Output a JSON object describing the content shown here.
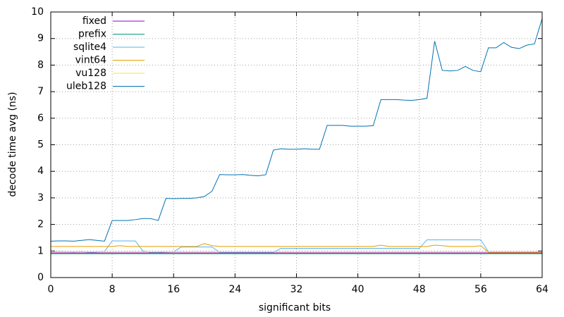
{
  "chart_data": {
    "type": "line",
    "xlabel": "significant bits",
    "ylabel": "decode time avg (ns)",
    "x": [
      0,
      1,
      2,
      3,
      4,
      5,
      6,
      7,
      8,
      9,
      10,
      11,
      12,
      13,
      14,
      15,
      16,
      17,
      18,
      19,
      20,
      21,
      22,
      23,
      24,
      25,
      26,
      27,
      28,
      29,
      30,
      31,
      32,
      33,
      34,
      35,
      36,
      37,
      38,
      39,
      40,
      41,
      42,
      43,
      44,
      45,
      46,
      47,
      48,
      49,
      50,
      51,
      52,
      53,
      54,
      55,
      56,
      57,
      58,
      59,
      60,
      61,
      62,
      63,
      64
    ],
    "xlim": [
      0,
      64
    ],
    "xticks": [
      0,
      8,
      16,
      24,
      32,
      40,
      48,
      56,
      64
    ],
    "ylim": [
      0,
      10
    ],
    "yticks": [
      0,
      1,
      2,
      3,
      4,
      5,
      6,
      7,
      8,
      9,
      10
    ],
    "grid": true,
    "legend": "top-left",
    "series": [
      {
        "name": "fixed",
        "color": "#9400d3",
        "values": [
          0.93,
          0.93,
          0.93,
          0.93,
          0.93,
          0.93,
          0.93,
          0.93,
          0.93,
          0.93,
          0.93,
          0.93,
          0.93,
          0.93,
          0.93,
          0.93,
          0.93,
          0.93,
          0.93,
          0.93,
          0.93,
          0.93,
          0.93,
          0.93,
          0.93,
          0.93,
          0.93,
          0.93,
          0.93,
          0.93,
          0.93,
          0.93,
          0.93,
          0.93,
          0.93,
          0.93,
          0.93,
          0.93,
          0.93,
          0.93,
          0.93,
          0.93,
          0.93,
          0.93,
          0.93,
          0.93,
          0.93,
          0.93,
          0.93,
          0.93,
          0.93,
          0.93,
          0.93,
          0.93,
          0.93,
          0.93,
          0.93,
          0.93,
          0.93,
          0.93,
          0.93,
          0.93,
          0.93,
          0.93,
          0.93
        ]
      },
      {
        "name": "prefix",
        "color": "#009e73",
        "values": [
          0.9,
          0.9,
          0.9,
          0.9,
          0.9,
          0.9,
          0.9,
          0.9,
          0.9,
          0.9,
          0.9,
          0.9,
          0.9,
          0.9,
          0.9,
          0.9,
          0.9,
          0.9,
          0.9,
          0.9,
          0.9,
          0.9,
          0.9,
          0.9,
          0.9,
          0.9,
          0.9,
          0.9,
          0.9,
          0.9,
          0.9,
          0.9,
          0.9,
          0.9,
          0.9,
          0.9,
          0.9,
          0.9,
          0.9,
          0.9,
          0.9,
          0.9,
          0.9,
          0.9,
          0.9,
          0.9,
          0.9,
          0.9,
          0.9,
          0.9,
          0.9,
          0.9,
          0.9,
          0.9,
          0.9,
          0.9,
          0.9,
          0.9,
          0.9,
          0.9,
          0.9,
          0.9,
          0.9,
          0.9,
          0.9
        ]
      },
      {
        "name": "sqlite4",
        "color": "#56b4e9",
        "values": [
          0.98,
          0.98,
          0.97,
          0.96,
          0.98,
          0.95,
          0.96,
          0.98,
          1.38,
          1.38,
          1.38,
          1.38,
          1.0,
          0.95,
          0.95,
          0.96,
          0.97,
          1.15,
          1.15,
          1.15,
          1.15,
          1.15,
          0.95,
          0.95,
          0.95,
          0.95,
          0.95,
          0.95,
          0.95,
          0.95,
          1.1,
          1.1,
          1.1,
          1.1,
          1.1,
          1.1,
          1.1,
          1.1,
          1.1,
          1.1,
          1.1,
          1.1,
          1.1,
          1.1,
          1.1,
          1.1,
          1.1,
          1.1,
          1.1,
          1.42,
          1.42,
          1.42,
          1.42,
          1.42,
          1.42,
          1.42,
          1.42,
          0.97,
          0.97,
          0.97,
          0.97,
          0.97,
          0.97,
          0.97,
          0.97
        ]
      },
      {
        "name": "vint64",
        "color": "#e69f00",
        "values": [
          1.17,
          1.17,
          1.17,
          1.17,
          1.17,
          1.17,
          1.17,
          1.17,
          1.17,
          1.2,
          1.17,
          1.17,
          1.17,
          1.17,
          1.17,
          1.17,
          1.17,
          1.17,
          1.17,
          1.17,
          1.28,
          1.2,
          1.17,
          1.17,
          1.17,
          1.17,
          1.17,
          1.17,
          1.17,
          1.17,
          1.17,
          1.17,
          1.17,
          1.17,
          1.17,
          1.17,
          1.17,
          1.17,
          1.17,
          1.17,
          1.17,
          1.17,
          1.17,
          1.22,
          1.17,
          1.17,
          1.17,
          1.17,
          1.17,
          1.17,
          1.22,
          1.2,
          1.17,
          1.17,
          1.17,
          1.17,
          1.2,
          0.95,
          0.95,
          0.95,
          0.95,
          0.95,
          0.95,
          0.95,
          0.95
        ]
      },
      {
        "name": "vu128",
        "color": "#f0e442",
        "values": [
          0.97,
          0.97,
          0.97,
          0.97,
          0.97,
          0.97,
          0.97,
          0.97,
          0.97,
          0.97,
          0.97,
          0.97,
          0.97,
          0.97,
          0.97,
          0.97,
          0.97,
          0.97,
          0.97,
          0.97,
          0.97,
          0.97,
          0.97,
          0.97,
          0.97,
          0.97,
          0.97,
          0.97,
          0.97,
          0.97,
          0.97,
          0.97,
          0.97,
          0.97,
          0.97,
          0.97,
          0.97,
          0.97,
          0.97,
          0.97,
          0.97,
          0.97,
          0.97,
          0.97,
          0.97,
          0.97,
          0.97,
          0.97,
          0.97,
          0.97,
          0.97,
          0.97,
          0.97,
          0.97,
          0.97,
          0.97,
          0.97,
          0.97,
          0.97,
          0.97,
          0.97,
          0.97,
          0.97,
          0.97,
          0.97
        ]
      },
      {
        "name": "uleb128",
        "color": "#0072b2",
        "values": [
          1.37,
          1.38,
          1.38,
          1.37,
          1.4,
          1.43,
          1.4,
          1.37,
          2.15,
          2.15,
          2.15,
          2.18,
          2.22,
          2.22,
          2.15,
          2.98,
          2.97,
          2.98,
          2.98,
          3.0,
          3.05,
          3.25,
          3.88,
          3.87,
          3.87,
          3.88,
          3.85,
          3.83,
          3.87,
          4.8,
          4.85,
          4.83,
          4.83,
          4.85,
          4.83,
          4.83,
          5.73,
          5.73,
          5.73,
          5.7,
          5.7,
          5.7,
          5.72,
          6.7,
          6.7,
          6.7,
          6.68,
          6.67,
          6.7,
          6.75,
          8.9,
          7.8,
          7.78,
          7.8,
          7.95,
          7.8,
          7.75,
          8.65,
          8.65,
          8.85,
          8.67,
          8.62,
          8.75,
          8.8,
          9.75
        ]
      }
    ]
  }
}
